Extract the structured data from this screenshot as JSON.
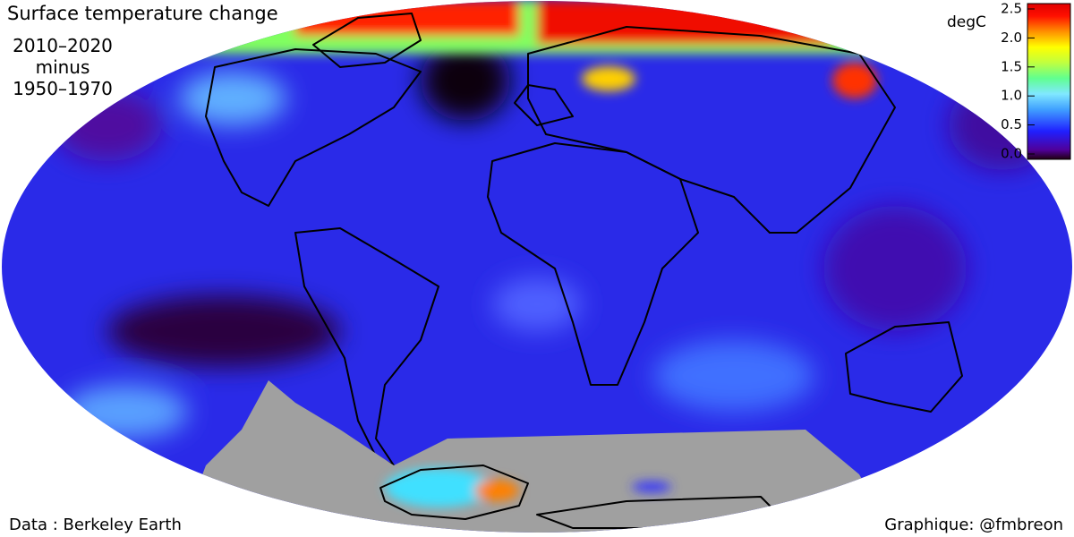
{
  "title": "Surface temperature change",
  "period": [
    "2010–2020",
    "minus",
    "1950–1970"
  ],
  "colorbar": {
    "unit": "degC",
    "lim": [
      0,
      2.5
    ],
    "ticks": [
      {
        "value": 0,
        "label": "0.0"
      },
      0.5,
      {
        "value": 1,
        "label": "1.0"
      },
      1.5,
      {
        "value": 2,
        "label": "2.0"
      },
      2.5
    ]
  },
  "credits": {
    "source": "Data : Berkeley Earth",
    "author": "Graphique: @fmbreon"
  }
}
